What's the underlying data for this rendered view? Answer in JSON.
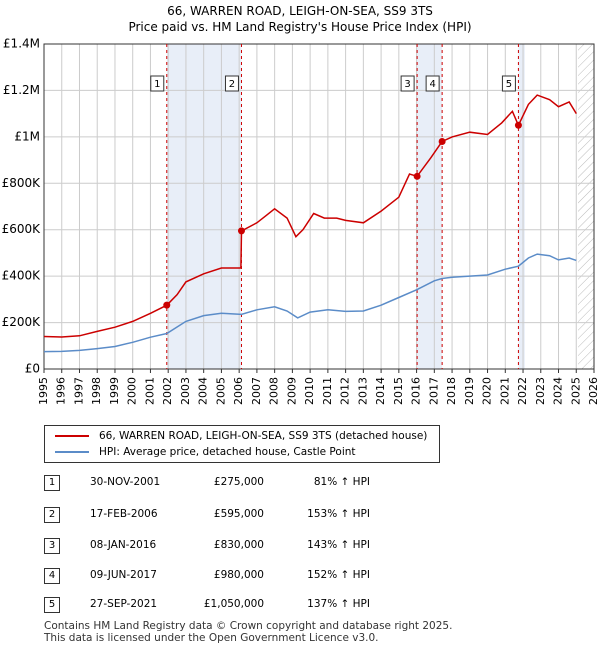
{
  "title_line1": "66, WARREN ROAD, LEIGH-ON-SEA, SS9 3TS",
  "title_line2": "Price paid vs. HM Land Registry's House Price Index (HPI)",
  "legend": {
    "property_label": "66, WARREN ROAD, LEIGH-ON-SEA, SS9 3TS (detached house)",
    "hpi_label": "HPI: Average price, detached house, Castle Point"
  },
  "transactions": [
    {
      "num": "1",
      "date": "30-NOV-2001",
      "price": "£275,000",
      "hpi": "81% ↑ HPI"
    },
    {
      "num": "2",
      "date": "17-FEB-2006",
      "price": "£595,000",
      "hpi": "153% ↑ HPI"
    },
    {
      "num": "3",
      "date": "08-JAN-2016",
      "price": "£830,000",
      "hpi": "143% ↑ HPI"
    },
    {
      "num": "4",
      "date": "09-JUN-2017",
      "price": "£980,000",
      "hpi": "152% ↑ HPI"
    },
    {
      "num": "5",
      "date": "27-SEP-2021",
      "price": "£1,050,000",
      "hpi": "137% ↑ HPI"
    }
  ],
  "footer_line1": "Contains HM Land Registry data © Crown copyright and database right 2025.",
  "footer_line2": "This data is licensed under the Open Government Licence v3.0.",
  "colors": {
    "property_line": "#cc0000",
    "hpi_line": "#5b8cc8",
    "shade": "#e8eef8",
    "marker_line": "#cc0000",
    "grid": "#cccccc"
  },
  "chart_data": {
    "type": "line",
    "xlim": [
      1995,
      2026
    ],
    "ylim": [
      0,
      1400000
    ],
    "x_ticks": [
      "1995",
      "1996",
      "1997",
      "1998",
      "1999",
      "2000",
      "2001",
      "2002",
      "2003",
      "2004",
      "2005",
      "2006",
      "2007",
      "2008",
      "2009",
      "2010",
      "2011",
      "2012",
      "2013",
      "2014",
      "2015",
      "2016",
      "2017",
      "2018",
      "2019",
      "2020",
      "2021",
      "2022",
      "2023",
      "2024",
      "2025",
      "2026"
    ],
    "y_ticks": [
      {
        "value": 0,
        "label": "£0"
      },
      {
        "value": 200000,
        "label": "£200K"
      },
      {
        "value": 400000,
        "label": "£400K"
      },
      {
        "value": 600000,
        "label": "£600K"
      },
      {
        "value": 800000,
        "label": "£800K"
      },
      {
        "value": 1000000,
        "label": "£1M"
      },
      {
        "value": 1200000,
        "label": "£1.2M"
      },
      {
        "value": 1400000,
        "label": "£1.4M"
      }
    ],
    "shaded_ranges": [
      [
        2001.92,
        2006.13
      ],
      [
        2016.03,
        2017.44
      ],
      [
        2021.74,
        2022.1
      ]
    ],
    "future_hatch_from": 2025.1,
    "sales": [
      {
        "label": "1",
        "x": 2001.92,
        "y": 275000
      },
      {
        "label": "2",
        "x": 2006.13,
        "y": 595000
      },
      {
        "label": "3",
        "x": 2016.03,
        "y": 830000
      },
      {
        "label": "4",
        "x": 2017.44,
        "y": 980000
      },
      {
        "label": "5",
        "x": 2021.74,
        "y": 1050000
      }
    ],
    "series": [
      {
        "name": "66, WARREN ROAD, LEIGH-ON-SEA, SS9 3TS (detached house)",
        "points": [
          [
            1995,
            140000
          ],
          [
            1996,
            138000
          ],
          [
            1997,
            143000
          ],
          [
            1998,
            162000
          ],
          [
            1999,
            180000
          ],
          [
            2000,
            205000
          ],
          [
            2001,
            240000
          ],
          [
            2001.92,
            275000
          ],
          [
            2002.5,
            320000
          ],
          [
            2003,
            375000
          ],
          [
            2004,
            410000
          ],
          [
            2005,
            435000
          ],
          [
            2006.1,
            435000
          ],
          [
            2006.13,
            595000
          ],
          [
            2007,
            630000
          ],
          [
            2007.5,
            660000
          ],
          [
            2008,
            690000
          ],
          [
            2008.7,
            650000
          ],
          [
            2009.2,
            570000
          ],
          [
            2009.6,
            600000
          ],
          [
            2010.2,
            670000
          ],
          [
            2010.8,
            650000
          ],
          [
            2011.5,
            650000
          ],
          [
            2012,
            640000
          ],
          [
            2013,
            630000
          ],
          [
            2014,
            680000
          ],
          [
            2015,
            740000
          ],
          [
            2015.6,
            840000
          ],
          [
            2016.03,
            830000
          ],
          [
            2016.8,
            910000
          ],
          [
            2017.44,
            980000
          ],
          [
            2018,
            1000000
          ],
          [
            2019,
            1020000
          ],
          [
            2020,
            1010000
          ],
          [
            2020.8,
            1060000
          ],
          [
            2021.4,
            1110000
          ],
          [
            2021.74,
            1050000
          ],
          [
            2022.3,
            1140000
          ],
          [
            2022.8,
            1180000
          ],
          [
            2023.5,
            1160000
          ],
          [
            2024,
            1130000
          ],
          [
            2024.6,
            1150000
          ],
          [
            2025,
            1100000
          ]
        ]
      },
      {
        "name": "HPI: Average price, detached house, Castle Point",
        "points": [
          [
            1995,
            75000
          ],
          [
            1996,
            76000
          ],
          [
            1997,
            80000
          ],
          [
            1998,
            88000
          ],
          [
            1999,
            97000
          ],
          [
            2000,
            115000
          ],
          [
            2001,
            137000
          ],
          [
            2001.92,
            153000
          ],
          [
            2003,
            205000
          ],
          [
            2004,
            230000
          ],
          [
            2005,
            240000
          ],
          [
            2006.13,
            235000
          ],
          [
            2007,
            255000
          ],
          [
            2008,
            268000
          ],
          [
            2008.7,
            250000
          ],
          [
            2009.3,
            220000
          ],
          [
            2010,
            245000
          ],
          [
            2011,
            255000
          ],
          [
            2012,
            248000
          ],
          [
            2013,
            250000
          ],
          [
            2014,
            275000
          ],
          [
            2015,
            308000
          ],
          [
            2016.03,
            342000
          ],
          [
            2017,
            380000
          ],
          [
            2017.44,
            390000
          ],
          [
            2018,
            395000
          ],
          [
            2019,
            400000
          ],
          [
            2020,
            405000
          ],
          [
            2021,
            430000
          ],
          [
            2021.74,
            443000
          ],
          [
            2022.3,
            478000
          ],
          [
            2022.8,
            495000
          ],
          [
            2023.5,
            488000
          ],
          [
            2024,
            470000
          ],
          [
            2024.6,
            478000
          ],
          [
            2025,
            468000
          ]
        ]
      }
    ]
  }
}
